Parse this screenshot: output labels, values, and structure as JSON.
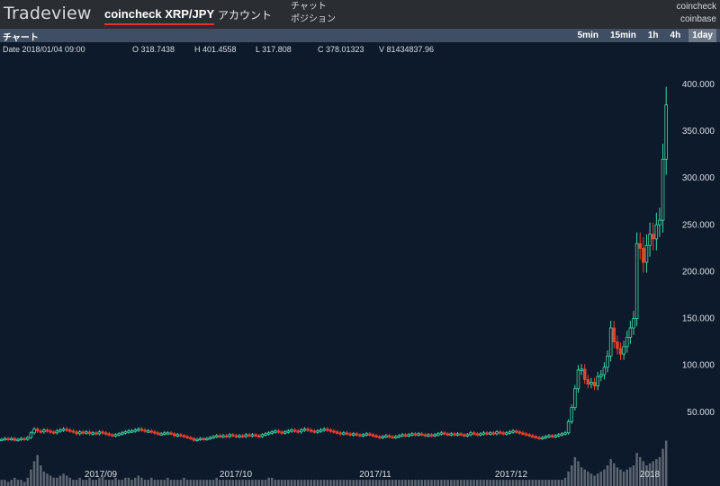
{
  "header": {
    "brand": "Tradeview",
    "pair_tab": "coincheck XRP/JPY",
    "account_tab": "アカウント",
    "menu": [
      "チャット",
      "ポジション"
    ],
    "exchanges": [
      "coincheck",
      "coinbase"
    ]
  },
  "panel": {
    "title": "チャート",
    "intervals": [
      "5min",
      "15min",
      "1h",
      "4h",
      "1day"
    ],
    "active_interval": "1day"
  },
  "ohlc": {
    "date": "Date 2018/01/04 09:00",
    "open": "O 318.7438",
    "high": "H 401.4558",
    "low": "L 317.808",
    "close": "C 378.01323",
    "volume": "V 81434837.96"
  },
  "chart_data": {
    "type": "candlestick",
    "x_labels": [
      "2017/09",
      "2017/10",
      "2017/11",
      "2017/12",
      "2018"
    ],
    "y_ticks": [
      "50.000",
      "100.000",
      "150.000",
      "200.000",
      "250.000",
      "300.000",
      "350.000",
      "400.000"
    ],
    "y_tick_values": [
      50,
      100,
      150,
      200,
      250,
      300,
      350,
      400
    ],
    "closes": [
      21,
      22,
      21,
      22,
      20,
      21,
      22,
      21,
      23,
      28,
      32,
      30,
      29,
      31,
      30,
      29,
      28,
      30,
      31,
      32,
      31,
      30,
      29,
      27,
      29,
      28,
      29,
      27,
      28,
      27,
      29,
      28,
      27,
      26,
      25,
      26,
      27,
      28,
      29,
      30,
      30,
      31,
      32,
      31,
      30,
      30,
      29,
      28,
      27,
      27,
      28,
      28,
      27,
      25,
      26,
      25,
      24,
      23,
      22,
      20,
      21,
      22,
      21,
      22,
      23,
      24,
      25,
      24,
      25,
      24,
      26,
      25,
      24,
      25,
      24,
      26,
      25,
      26,
      25,
      24,
      26,
      27,
      28,
      29,
      30,
      29,
      28,
      29,
      30,
      31,
      30,
      29,
      31,
      32,
      31,
      30,
      29,
      30,
      31,
      32,
      31,
      30,
      29,
      28,
      27,
      28,
      27,
      26,
      27,
      26,
      25,
      26,
      27,
      26,
      25,
      24,
      23,
      24,
      25,
      24,
      23,
      24,
      25,
      26,
      25,
      26,
      27,
      26,
      27,
      26,
      25,
      26,
      25,
      26,
      27,
      28,
      27,
      26,
      27,
      26,
      27,
      26,
      25,
      26,
      28,
      27,
      26,
      27,
      28,
      27,
      28,
      27,
      29,
      28,
      27,
      28,
      29,
      30,
      29,
      28,
      27,
      26,
      25,
      24,
      23,
      22,
      23,
      24,
      25,
      24,
      25,
      26,
      27,
      28,
      40,
      55,
      75,
      95,
      96,
      85,
      80,
      82,
      78,
      88,
      90,
      98,
      110,
      140,
      125,
      118,
      112,
      120,
      130,
      140,
      150,
      230,
      225,
      210,
      228,
      240,
      235,
      250,
      255,
      320,
      378
    ],
    "volumes": [
      3,
      3,
      2,
      3,
      4,
      3,
      3,
      2,
      4,
      8,
      12,
      15,
      10,
      7,
      6,
      5,
      4,
      4,
      5,
      6,
      5,
      4,
      3,
      3,
      4,
      3,
      3,
      4,
      3,
      3,
      4,
      5,
      3,
      3,
      3,
      4,
      3,
      3,
      4,
      4,
      3,
      4,
      5,
      4,
      3,
      3,
      4,
      3,
      3,
      3,
      3,
      4,
      3,
      3,
      3,
      3,
      4,
      3,
      3,
      3,
      3,
      3,
      3,
      3,
      3,
      3,
      4,
      3,
      3,
      3,
      3,
      3,
      3,
      3,
      3,
      3,
      3,
      3,
      3,
      3,
      3,
      3,
      4,
      4,
      3,
      3,
      3,
      3,
      3,
      3,
      3,
      3,
      3,
      3,
      3,
      3,
      3,
      3,
      3,
      3,
      3,
      3,
      3,
      3,
      3,
      3,
      3,
      3,
      3,
      3,
      3,
      3,
      3,
      3,
      3,
      3,
      3,
      3,
      3,
      3,
      3,
      3,
      3,
      3,
      3,
      3,
      3,
      3,
      3,
      3,
      3,
      3,
      3,
      3,
      3,
      3,
      3,
      3,
      3,
      3,
      3,
      3,
      3,
      3,
      3,
      3,
      3,
      3,
      3,
      3,
      3,
      3,
      3,
      3,
      3,
      3,
      3,
      3,
      3,
      3,
      3,
      3,
      3,
      3,
      3,
      3,
      3,
      3,
      3,
      3,
      3,
      3,
      3,
      4,
      7,
      10,
      14,
      12,
      9,
      8,
      7,
      6,
      5,
      6,
      7,
      8,
      10,
      13,
      11,
      9,
      8,
      7,
      8,
      9,
      10,
      16,
      14,
      12,
      10,
      11,
      12,
      13,
      14,
      18,
      22
    ],
    "x_min": 0,
    "y_range": [
      0,
      420
    ]
  }
}
